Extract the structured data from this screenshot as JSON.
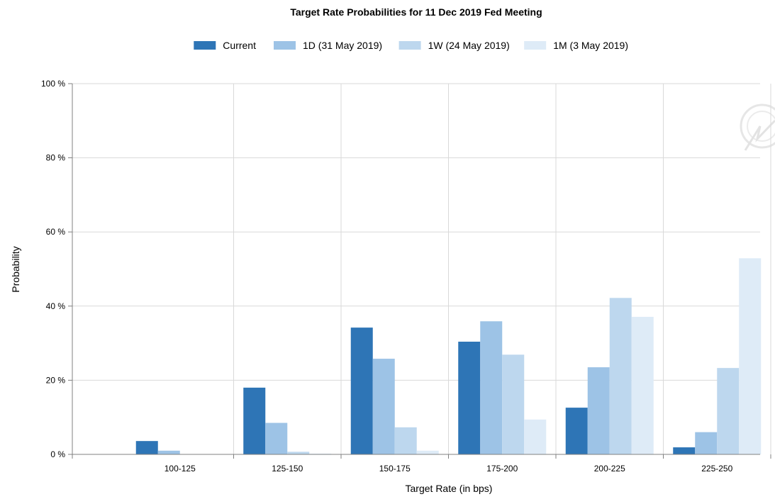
{
  "chart_data": {
    "type": "bar",
    "title": "Target Rate Probabilities for 11 Dec 2019 Fed Meeting",
    "xlabel": "Target Rate (in bps)",
    "ylabel": "Probability",
    "ylim": [
      0,
      100
    ],
    "y_ticks": [
      0,
      20,
      40,
      60,
      80,
      100
    ],
    "y_tick_suffix": " %",
    "grid": true,
    "legend_placement": "top-center",
    "categories": [
      "100-125",
      "125-150",
      "150-175",
      "175-200",
      "200-225",
      "225-250"
    ],
    "series": [
      {
        "name": "Current",
        "color": "#2e75b6",
        "values": [
          3.6,
          18.0,
          34.2,
          30.4,
          12.6,
          1.9
        ]
      },
      {
        "name": "1D (31 May 2019)",
        "color": "#9dc3e6",
        "values": [
          1.0,
          8.5,
          25.8,
          35.9,
          23.5,
          6.0
        ]
      },
      {
        "name": "1W (24 May 2019)",
        "color": "#bdd7ee",
        "values": [
          0.0,
          0.7,
          7.3,
          26.9,
          42.2,
          23.3
        ]
      },
      {
        "name": "1M (3 May 2019)",
        "color": "#deebf7",
        "values": [
          0.0,
          0.2,
          1.0,
          9.4,
          37.1,
          52.9
        ]
      }
    ]
  }
}
